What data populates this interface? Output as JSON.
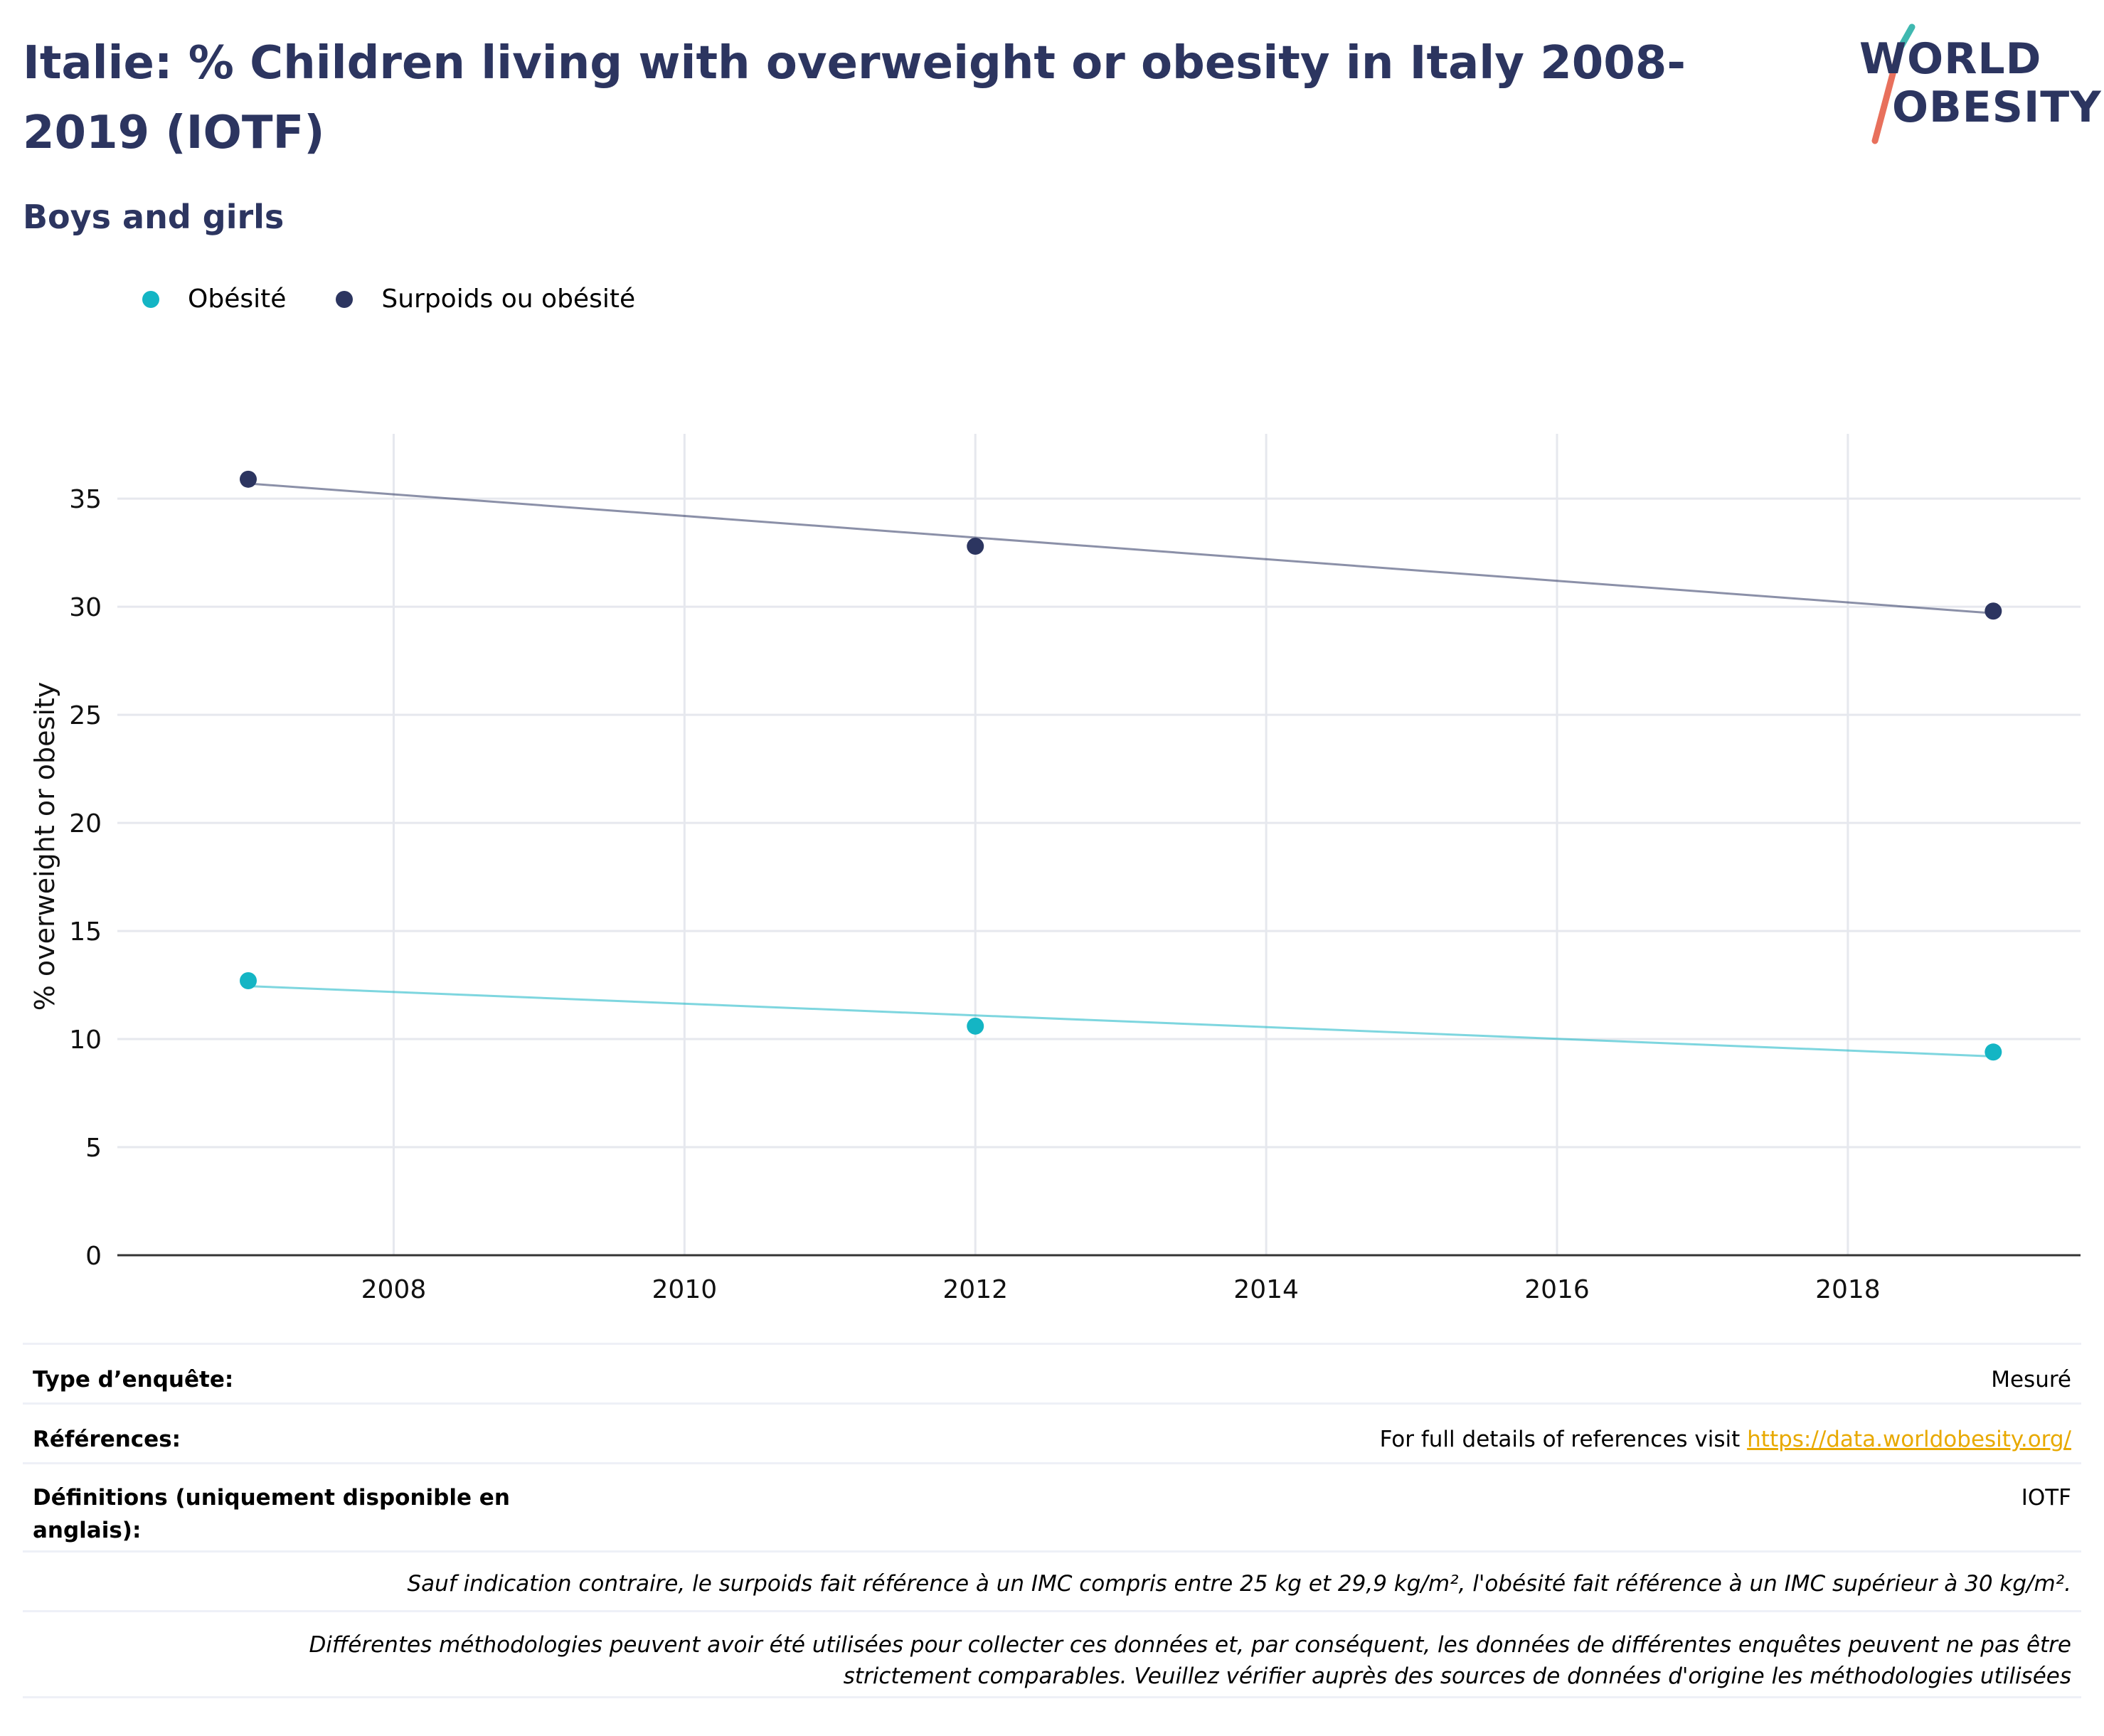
{
  "header": {
    "title": "Italie: % Children living with overweight or obesity in Italy 2008-2019 (IOTF)",
    "subtitle": "Boys and girls"
  },
  "logo": {
    "line1": "WORLD",
    "line2": "OBESITY"
  },
  "colors": {
    "title": "#2c3560",
    "obesity": "#14b5c4",
    "overweight": "#2c3560",
    "link": "#e8a900"
  },
  "chart_data": {
    "type": "scatter",
    "title": "Italie: % Children living with overweight or obesity in Italy 2008-2019 (IOTF)",
    "subtitle": "Boys and girls",
    "ylabel": "% overweight or obesity",
    "xlabel": "",
    "xlim": [
      2006.1,
      2019.6
    ],
    "ylim": [
      0,
      38
    ],
    "xticks": [
      2008,
      2010,
      2012,
      2014,
      2016,
      2018
    ],
    "yticks": [
      0,
      5,
      10,
      15,
      20,
      25,
      30,
      35
    ],
    "grid": true,
    "legend_position": "top-left",
    "series": [
      {
        "name": "Obésité",
        "color": "#14b5c4",
        "x": [
          2007,
          2012,
          2019
        ],
        "y": [
          12.7,
          10.6,
          9.4
        ],
        "trend": [
          12.45,
          9.2
        ]
      },
      {
        "name": "Surpoids ou obésité",
        "color": "#2c3560",
        "x": [
          2007,
          2012,
          2019
        ],
        "y": [
          35.9,
          32.8,
          29.8
        ],
        "trend": [
          35.7,
          29.7
        ]
      }
    ]
  },
  "info": {
    "survey_type_label": "Type d’enquête:",
    "survey_type_value": "Mesuré",
    "references_label": "Références:",
    "references_text": "For full details of references visit ",
    "references_link": "https://data.worldobesity.org/",
    "definitions_label": "Définitions (uniquement disponible en anglais):",
    "definitions_value": "IOTF",
    "note_bmi": "Sauf indication contraire, le surpoids fait référence à un IMC compris entre 25 kg et 29,9 kg/m², l'obésité fait référence à un IMC supérieur à 30 kg/m².",
    "note_methods": "Différentes méthodologies peuvent avoir été utilisées pour collecter ces données et, par conséquent, les données de différentes enquêtes peuvent ne pas être strictement comparables. Veuillez vérifier auprès des sources de données d'origine les méthodologies utilisées"
  }
}
